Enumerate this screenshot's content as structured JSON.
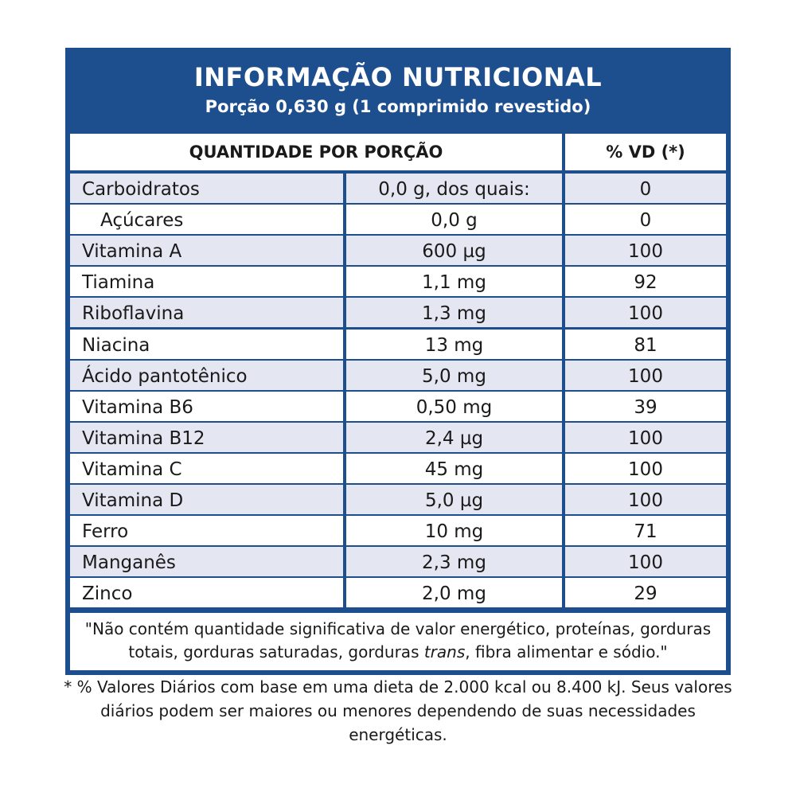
{
  "header": {
    "title": "INFORMAÇÃO NUTRICIONAL",
    "subtitle": "Porção 0,630 g (1 comprimido revestido)"
  },
  "table": {
    "columns": [
      "QUANTIDADE POR PORÇÃO",
      "% VD (*)"
    ],
    "rows": [
      [
        "Carboidratos",
        "0,0 g, dos quais:",
        "0"
      ],
      [
        "Açúcares",
        "0,0 g",
        "0"
      ],
      [
        "Vitamina A",
        "600 µg",
        "100"
      ],
      [
        "Tiamina",
        "1,1 mg",
        "92"
      ],
      [
        "Riboflavina",
        "1,3 mg",
        "100"
      ],
      [
        "Niacina",
        "13 mg",
        "81"
      ],
      [
        "Ácido pantotênico",
        "5,0 mg",
        "100"
      ],
      [
        "Vitamina B6",
        "0,50 mg",
        "39"
      ],
      [
        "Vitamina B12",
        "2,4 µg",
        "100"
      ],
      [
        "Vitamina C",
        "45 mg",
        "100"
      ],
      [
        "Vitamina D",
        "5,0 µg",
        "100"
      ],
      [
        "Ferro",
        "10 mg",
        "71"
      ],
      [
        "Manganês",
        "2,3 mg",
        "100"
      ],
      [
        "Zinco",
        "2,0 mg",
        "29"
      ]
    ]
  },
  "note": {
    "before": "\"Não contém quantidade significativa de valor energético, proteínas, gorduras totais, gorduras saturadas, gorduras ",
    "italic": "trans",
    "after": ", fibra alimentar e sódio.\""
  },
  "footnote": "* % Valores Diários com base em uma dieta de 2.000 kcal ou 8.400 kJ. Seus valores diários podem ser maiores ou menores dependendo de suas necessidades energéticas."
}
